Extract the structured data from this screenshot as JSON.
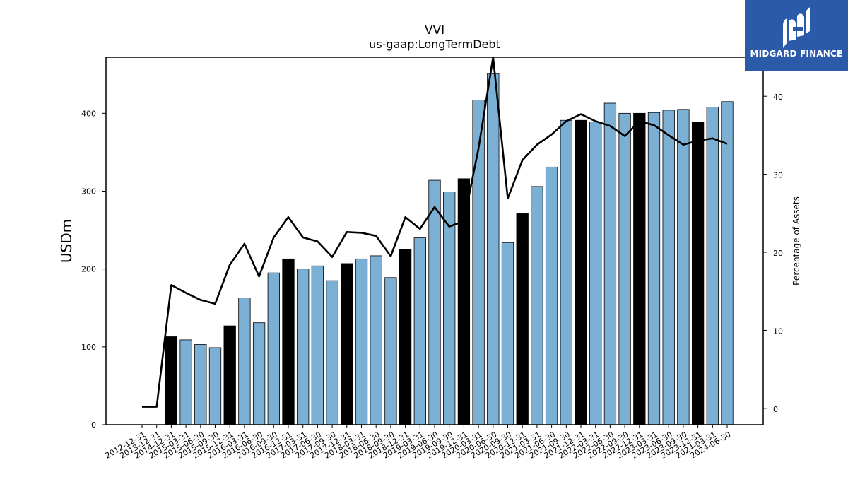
{
  "chart_data": {
    "type": "bar",
    "title": "VVI",
    "subtitle": "us-gaap:LongTermDebt",
    "ylabel": "USDm",
    "y2label": "Percentage of Assets",
    "ylim": [
      0,
      472
    ],
    "y2lim": [
      -2.1,
      45
    ],
    "yticks": [
      0,
      100,
      200,
      300,
      400
    ],
    "y2ticks": [
      0,
      10,
      20,
      30,
      40
    ],
    "categories": [
      "2012-12-31",
      "2013-12-31",
      "2014-12-31",
      "2015-03-31",
      "2015-06-30",
      "2015-09-30",
      "2015-12-31",
      "2016-03-31",
      "2016-06-30",
      "2016-09-30",
      "2016-12-31",
      "2017-03-31",
      "2017-06-30",
      "2017-09-30",
      "2017-12-31",
      "2018-03-31",
      "2018-06-30",
      "2018-09-30",
      "2018-12-31",
      "2019-03-31",
      "2019-06-30",
      "2019-09-30",
      "2019-12-31",
      "2020-03-31",
      "2020-06-30",
      "2020-09-30",
      "2020-12-31",
      "2021-03-31",
      "2021-06-30",
      "2021-09-30",
      "2021-12-31",
      "2022-03-31",
      "2022-06-30",
      "2022-09-30",
      "2022-12-31",
      "2023-03-31",
      "2023-06-30",
      "2023-09-30",
      "2023-12-31",
      "2024-03-31",
      "2024-06-30"
    ],
    "series": [
      {
        "values": [
          0,
          0,
          113,
          109,
          103,
          99,
          127,
          163,
          131,
          195,
          213,
          200,
          204,
          185,
          207,
          213,
          217,
          189,
          225,
          240,
          314,
          299,
          316,
          417,
          451,
          234,
          271,
          306,
          331,
          391,
          391,
          389,
          413,
          400,
          400,
          401,
          404,
          405,
          389,
          408,
          415
        ],
        "annual": [
          false,
          false,
          true,
          false,
          false,
          false,
          true,
          false,
          false,
          false,
          true,
          false,
          false,
          false,
          true,
          false,
          false,
          false,
          true,
          false,
          false,
          false,
          true,
          false,
          false,
          false,
          true,
          false,
          false,
          false,
          true,
          false,
          false,
          false,
          true,
          false,
          false,
          false,
          true,
          false,
          false
        ]
      },
      {
        "axis": "right",
        "values": [
          0.2,
          0.2,
          15.8,
          14.8,
          13.9,
          13.4,
          18.4,
          21.1,
          16.9,
          21.9,
          24.5,
          21.9,
          21.4,
          19.4,
          22.6,
          22.5,
          22.1,
          19.5,
          24.5,
          23.0,
          25.8,
          23.3,
          24.0,
          33.3,
          45.0,
          26.9,
          31.8,
          33.8,
          35.1,
          36.8,
          37.7,
          36.8,
          36.2,
          34.9,
          36.8,
          36.3,
          35.0,
          33.8,
          34.3,
          34.6,
          33.9
        ]
      }
    ],
    "colors": {
      "quarterly_bar": "#7bafd4",
      "annual_bar": "#000000",
      "line": "#000000"
    },
    "grid": false
  },
  "logo": {
    "text": "MIDGARD FINANCE",
    "background": "#2b5aa8"
  }
}
